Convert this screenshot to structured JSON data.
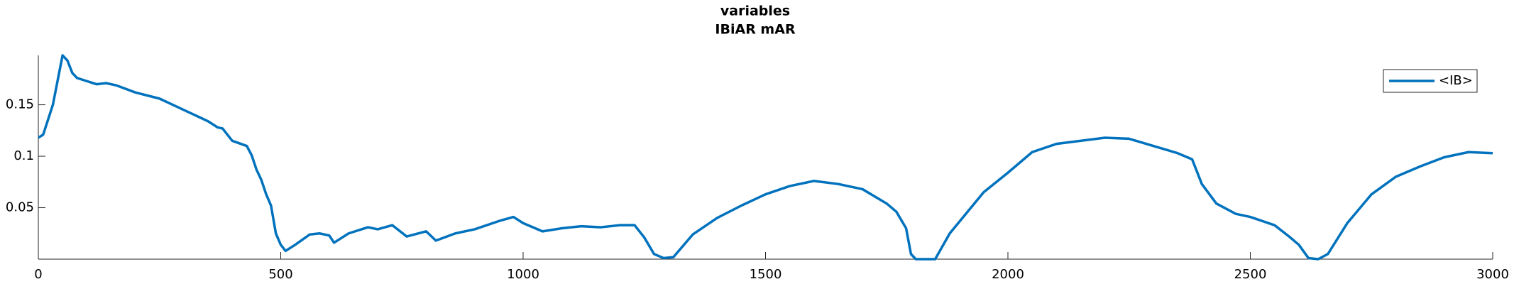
{
  "chart_data": {
    "type": "line",
    "title": "variables",
    "subtitle": "IBiAR mAR",
    "x": [
      0,
      10,
      30,
      50,
      60,
      70,
      80,
      100,
      120,
      140,
      160,
      200,
      250,
      300,
      350,
      370,
      380,
      400,
      430,
      440,
      450,
      460,
      470,
      480,
      490,
      500,
      510,
      530,
      560,
      580,
      600,
      610,
      640,
      680,
      700,
      730,
      760,
      800,
      820,
      860,
      900,
      950,
      980,
      1000,
      1040,
      1080,
      1120,
      1160,
      1200,
      1230,
      1250,
      1270,
      1290,
      1310,
      1350,
      1400,
      1450,
      1500,
      1550,
      1600,
      1650,
      1700,
      1750,
      1770,
      1790,
      1800,
      1810,
      1850,
      1880,
      1950,
      2000,
      2050,
      2100,
      2200,
      2250,
      2300,
      2350,
      2380,
      2400,
      2430,
      2470,
      2500,
      2550,
      2580,
      2600,
      2620,
      2640,
      2660,
      2700,
      2750,
      2800,
      2850,
      2900,
      2950,
      3000
    ],
    "series": [
      {
        "name": "<IB>",
        "color": "#0072bd",
        "values": [
          0.118,
          0.121,
          0.15,
          0.198,
          0.193,
          0.181,
          0.176,
          0.173,
          0.17,
          0.171,
          0.169,
          0.162,
          0.156,
          0.145,
          0.134,
          0.128,
          0.127,
          0.115,
          0.11,
          0.101,
          0.087,
          0.077,
          0.063,
          0.052,
          0.025,
          0.014,
          0.008,
          0.014,
          0.024,
          0.025,
          0.023,
          0.016,
          0.025,
          0.031,
          0.029,
          0.033,
          0.022,
          0.027,
          0.018,
          0.025,
          0.029,
          0.037,
          0.041,
          0.035,
          0.027,
          0.03,
          0.032,
          0.031,
          0.033,
          0.033,
          0.021,
          0.005,
          0.001,
          0.002,
          0.024,
          0.04,
          0.052,
          0.063,
          0.071,
          0.076,
          0.073,
          0.068,
          0.054,
          0.046,
          0.03,
          0.005,
          0,
          0,
          0.025,
          0.065,
          0.084,
          0.104,
          0.112,
          0.118,
          0.117,
          0.11,
          0.103,
          0.097,
          0.073,
          0.054,
          0.044,
          0.041,
          0.033,
          0.022,
          0.014,
          0.001,
          0,
          0.005,
          0.035,
          0.063,
          0.08,
          0.09,
          0.099,
          0.104,
          0.103
        ]
      }
    ],
    "xlim": [
      0,
      3000
    ],
    "xticks": [
      0,
      500,
      1000,
      1500,
      2000,
      2500,
      3000
    ],
    "ylim": [
      0,
      0.198
    ],
    "yticks": [
      0.05,
      0.1,
      0.15
    ],
    "legend": "upper right"
  }
}
